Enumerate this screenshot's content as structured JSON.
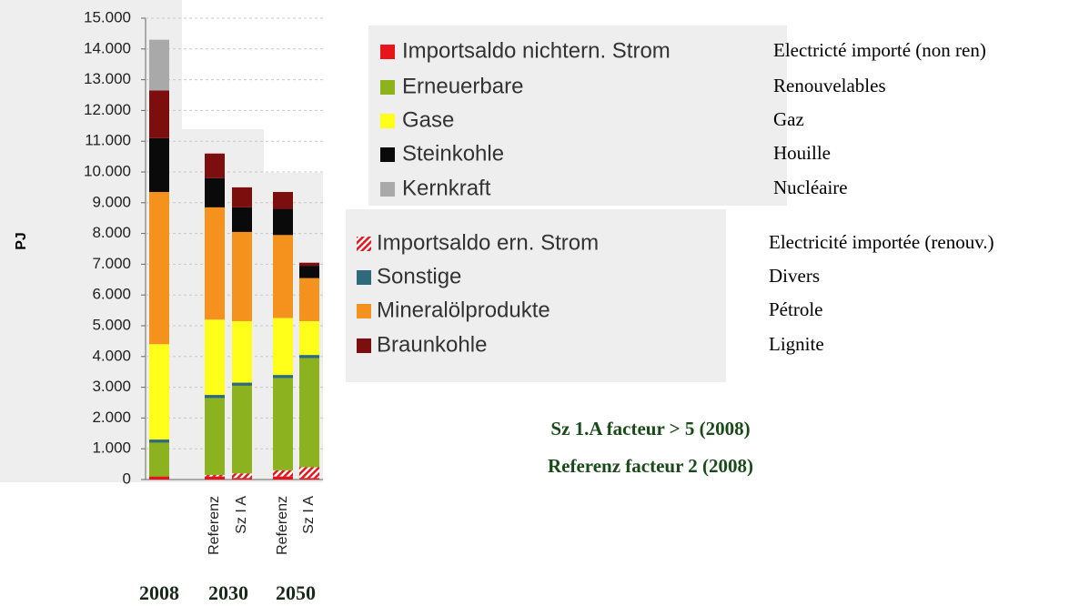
{
  "chart_data": {
    "type": "stacked_bar",
    "y_label": "PJ",
    "categories": [
      null,
      "Referenz",
      "Sz I A",
      "Referenz",
      "Sz I A"
    ],
    "year_labels": [
      "2008",
      "2030",
      "2050"
    ],
    "series": [
      {
        "name": "Importsaldo nichtern. Strom",
        "name_fr": "Electricté importé (non ren)",
        "color": "#e8141c",
        "values": [
          100,
          100,
          50,
          100,
          50
        ]
      },
      {
        "name": "Importsaldo ern. Strom",
        "name_fr": "Electricité importée (renouv.)",
        "color": "#e8141c",
        "hatched": true,
        "values": [
          0,
          50,
          150,
          200,
          350
        ]
      },
      {
        "name": "Erneuerbare",
        "name_fr": "Renouvelables",
        "color": "#8db21f",
        "values": [
          1100,
          2500,
          2850,
          3000,
          3550
        ]
      },
      {
        "name": "Sonstige",
        "name_fr": "Divers",
        "color": "#2e6a7c",
        "values": [
          100,
          100,
          100,
          100,
          100
        ]
      },
      {
        "name": "Gase",
        "name_fr": "Gaz",
        "color": "#ffff1a",
        "values": [
          3100,
          2450,
          2000,
          1850,
          1100
        ]
      },
      {
        "name": "Mineralölprodukte",
        "name_fr": "Pétrole",
        "color": "#f5921e",
        "values": [
          4950,
          3650,
          2900,
          2700,
          1400
        ]
      },
      {
        "name": "Steinkohle",
        "name_fr": "Houille",
        "color": "#0a0a0a",
        "values": [
          1750,
          950,
          800,
          850,
          400
        ]
      },
      {
        "name": "Braunkohle",
        "name_fr": "Lignite",
        "color": "#7c0e0e",
        "values": [
          1550,
          800,
          650,
          550,
          100
        ]
      },
      {
        "name": "Kernkraft",
        "name_fr": "Nucléaire",
        "color": "#a9a9a9",
        "values": [
          1650,
          0,
          0,
          0,
          0
        ]
      }
    ],
    "ylim": [
      0,
      15000
    ],
    "yticks": [
      0,
      {
        "value": 1000,
        "label": "1.000"
      },
      {
        "value": 2000,
        "label": "2.000"
      },
      {
        "value": 3000,
        "label": "3.000"
      },
      {
        "value": 4000,
        "label": "4.000"
      },
      {
        "value": 5000,
        "label": "5.000"
      },
      {
        "value": 6000,
        "label": "6.000"
      },
      {
        "value": 7000,
        "label": "7.000"
      },
      {
        "value": 8000,
        "label": "8.000"
      },
      {
        "value": 9000,
        "label": "9.000"
      },
      {
        "value": 10000,
        "label": "10.000"
      },
      {
        "value": 11000,
        "label": "11.000"
      },
      {
        "value": 12000,
        "label": "12.000"
      },
      {
        "value": 13000,
        "label": "13.000"
      },
      {
        "value": 14000,
        "label": "14.000"
      },
      {
        "value": 15000,
        "label": "15.000"
      }
    ],
    "grid": true,
    "annotations": [
      "Sz 1.A facteur > 5 (2008)",
      "Referenz  facteur 2 (2008)"
    ]
  }
}
